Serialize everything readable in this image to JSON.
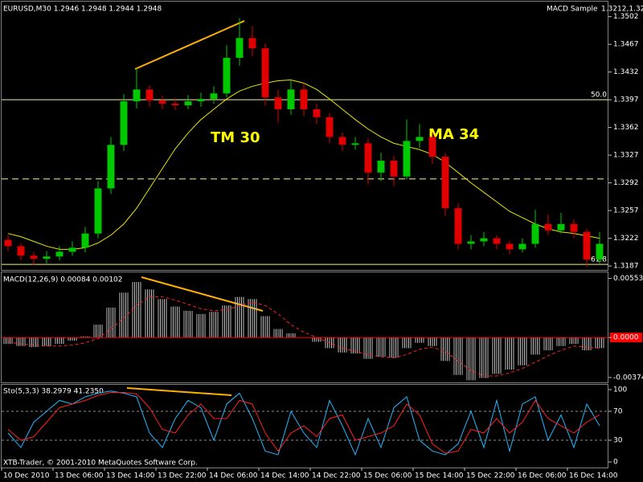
{
  "chart_data": [
    {
      "type": "candlestick",
      "title": "EURUSD,M30  1.2946 1.2948 1.2944 1.2948",
      "annotation": "MACD Sample",
      "close": [
        1.3212,
        1.32,
        1.3196,
        1.3199,
        1.3205,
        1.321,
        1.3228,
        1.3285,
        1.334,
        1.3395,
        1.341,
        1.3396,
        1.3392,
        1.339,
        1.3395,
        1.3398,
        1.3405,
        1.345,
        1.3475,
        1.3462,
        1.34,
        1.3385,
        1.341,
        1.3385,
        1.3375,
        1.335,
        1.334,
        1.3342,
        1.3305,
        1.332,
        1.33,
        1.3345,
        1.335,
        1.3325,
        1.326,
        1.3215,
        1.3218,
        1.3222,
        1.3215,
        1.3208,
        1.3215,
        1.324,
        1.3232,
        1.324,
        1.323,
        1.3195,
        1.3215
      ],
      "labels": [
        "TM 30",
        "MA 34"
      ],
      "categories": [
        "10 Dec 2010",
        null,
        null,
        null,
        "13 Dec 06:00",
        null,
        null,
        null,
        "13 Dec 14:00",
        null,
        null,
        null,
        "13 Dec 22:00",
        null,
        null,
        null,
        "14 Dec 06:00",
        null,
        null,
        null,
        "14 Dec 14:00",
        null,
        null,
        null,
        "14 Dec 22:00",
        null,
        null,
        null,
        "15 Dec 06:00",
        null,
        null,
        null,
        "15 Dec 14:00",
        null,
        null,
        null,
        "15 Dec 22:00",
        null,
        null,
        null,
        "16 Dec 06:00",
        null,
        null,
        null,
        "16 Dec 14:00",
        null,
        null
      ],
      "open": [
        1.322,
        1.3212,
        1.32,
        1.3196,
        1.3199,
        1.3205,
        1.321,
        1.3228,
        1.3285,
        1.334,
        1.3395,
        1.341,
        1.3396,
        1.3392,
        1.339,
        1.3395,
        1.3398,
        1.3405,
        1.345,
        1.3475,
        1.3462,
        1.34,
        1.3385,
        1.341,
        1.3385,
        1.3375,
        1.335,
        1.334,
        1.3342,
        1.3305,
        1.332,
        1.33,
        1.3345,
        1.335,
        1.3325,
        1.326,
        1.3215,
        1.3218,
        1.3222,
        1.3215,
        1.3208,
        1.3215,
        1.324,
        1.3232,
        1.324,
        1.323,
        1.3195
      ],
      "high": [
        1.3226,
        1.3216,
        1.3205,
        1.3206,
        1.3212,
        1.3218,
        1.3236,
        1.3294,
        1.335,
        1.3404,
        1.3437,
        1.3415,
        1.3402,
        1.3399,
        1.3403,
        1.3406,
        1.3414,
        1.3466,
        1.35,
        1.349,
        1.3468,
        1.341,
        1.3422,
        1.3418,
        1.3392,
        1.338,
        1.3356,
        1.335,
        1.3348,
        1.333,
        1.3326,
        1.3372,
        1.3366,
        1.3356,
        1.333,
        1.3266,
        1.3226,
        1.323,
        1.3226,
        1.3218,
        1.3222,
        1.3258,
        1.3252,
        1.3254,
        1.3246,
        1.3234,
        1.323
      ],
      "low": [
        1.3206,
        1.3194,
        1.3188,
        1.319,
        1.3194,
        1.32,
        1.3204,
        1.3222,
        1.3278,
        1.3332,
        1.3386,
        1.3388,
        1.3385,
        1.3384,
        1.3385,
        1.3388,
        1.3392,
        1.34,
        1.344,
        1.3452,
        1.339,
        1.3368,
        1.3378,
        1.3376,
        1.3366,
        1.3342,
        1.3332,
        1.3334,
        1.329,
        1.3294,
        1.3288,
        1.3296,
        1.3336,
        1.3316,
        1.325,
        1.3208,
        1.3208,
        1.3212,
        1.3208,
        1.3202,
        1.3204,
        1.321,
        1.3226,
        1.3228,
        1.3222,
        1.3186,
        1.319
      ],
      "up_color": "#00c800",
      "down_color": "#e00000",
      "ma": {
        "color": "#e6e600",
        "values": [
          1.3228,
          1.3224,
          1.3218,
          1.3212,
          1.3208,
          1.3208,
          1.321,
          1.3216,
          1.3226,
          1.324,
          1.326,
          1.3285,
          1.331,
          1.3335,
          1.3355,
          1.3372,
          1.3385,
          1.3398,
          1.3408,
          1.3414,
          1.3418,
          1.3421,
          1.3422,
          1.3418,
          1.341,
          1.3398,
          1.3385,
          1.3372,
          1.336,
          1.335,
          1.3342,
          1.3338,
          1.3334,
          1.3328,
          1.3318,
          1.3305,
          1.3292,
          1.328,
          1.3268,
          1.3256,
          1.3248,
          1.324,
          1.3234,
          1.323,
          1.3228,
          1.3225,
          1.3222
        ]
      },
      "levels": [
        {
          "value": 1.3397,
          "label": "50.0"
        },
        {
          "value": 1.3297,
          "dash": true
        },
        {
          "value": 1.3189,
          "label": "61.8"
        }
      ],
      "level_color": "#f0f0a0",
      "ylim": [
        1.3182,
        1.3521
      ],
      "yticks": [
        1.3502,
        1.3467,
        1.3432,
        1.3397,
        1.3362,
        1.3327,
        1.3292,
        1.3257,
        1.3222,
        1.3187
      ]
    },
    {
      "type": "macd",
      "title": "MACD(12,26,9) 0.00084 0.00102",
      "series": [
        {
          "style": "histogram",
          "color": "#c0c0c0",
          "values": [
            -0.0006,
            -0.0008,
            -0.0009,
            -0.0008,
            -0.0006,
            -0.0003,
            0.0001,
            0.0012,
            0.0028,
            0.0042,
            0.0052,
            0.0045,
            0.0036,
            0.0029,
            0.0025,
            0.0022,
            0.0024,
            0.003,
            0.0038,
            0.0036,
            0.002,
            0.0008,
            0.0004,
            0.0,
            -0.0004,
            -0.001,
            -0.0014,
            -0.0015,
            -0.002,
            -0.0018,
            -0.0019,
            -0.001,
            -0.0005,
            -0.0008,
            -0.0022,
            -0.0035,
            -0.004,
            -0.0038,
            -0.0034,
            -0.003,
            -0.0026,
            -0.0016,
            -0.0012,
            -0.0008,
            -0.0006,
            -0.0012,
            -0.001
          ]
        },
        {
          "style": "dashed",
          "color": "#ff2020",
          "values": [
            -0.0004,
            -0.0006,
            -0.0007,
            -0.0008,
            -0.0008,
            -0.0007,
            -0.0005,
            -0.0001,
            0.0008,
            0.0018,
            0.003,
            0.0038,
            0.0038,
            0.0035,
            0.0031,
            0.0027,
            0.0025,
            0.0026,
            0.003,
            0.0033,
            0.003,
            0.0022,
            0.0012,
            0.0005,
            0.0,
            -0.0005,
            -0.001,
            -0.0013,
            -0.0016,
            -0.0018,
            -0.0019,
            -0.0016,
            -0.0011,
            -0.0009,
            -0.0013,
            -0.0022,
            -0.0031,
            -0.0036,
            -0.0036,
            -0.0033,
            -0.0029,
            -0.0023,
            -0.0017,
            -0.0012,
            -0.0008,
            -0.0009,
            -0.001
          ]
        }
      ],
      "zero_color": "#ff0000",
      "ylim": [
        -0.0042,
        0.0061
      ],
      "yticks": [
        0.00553,
        {
          "value": 0,
          "label": "0.0000"
        },
        -0.00374
      ]
    },
    {
      "type": "stochastic",
      "title": "Sto(5,3,3) 38.2979 41.2350",
      "footer": "XTB-Trader, © 2001-2010 MetaQuotes Software Corp.",
      "series": [
        {
          "color": "#20b8ff",
          "values": [
            40,
            20,
            55,
            70,
            85,
            80,
            90,
            95,
            98,
            95,
            90,
            40,
            20,
            60,
            85,
            75,
            30,
            80,
            95,
            60,
            15,
            10,
            70,
            40,
            20,
            85,
            50,
            10,
            60,
            20,
            75,
            90,
            30,
            15,
            10,
            25,
            70,
            20,
            85,
            15,
            80,
            90,
            30,
            65,
            20,
            80,
            50
          ]
        },
        {
          "color": "#ff2020",
          "values": [
            45,
            30,
            35,
            55,
            75,
            80,
            85,
            92,
            96,
            96,
            94,
            75,
            45,
            40,
            65,
            80,
            60,
            60,
            85,
            80,
            40,
            15,
            40,
            50,
            35,
            60,
            65,
            30,
            35,
            40,
            50,
            80,
            65,
            25,
            12,
            15,
            45,
            40,
            60,
            40,
            55,
            85,
            60,
            50,
            40,
            55,
            65
          ]
        }
      ],
      "levels": [
        70,
        30
      ],
      "ylim": [
        -7.7,
        106.6
      ],
      "yticks": [
        100,
        70,
        30,
        0
      ]
    }
  ]
}
